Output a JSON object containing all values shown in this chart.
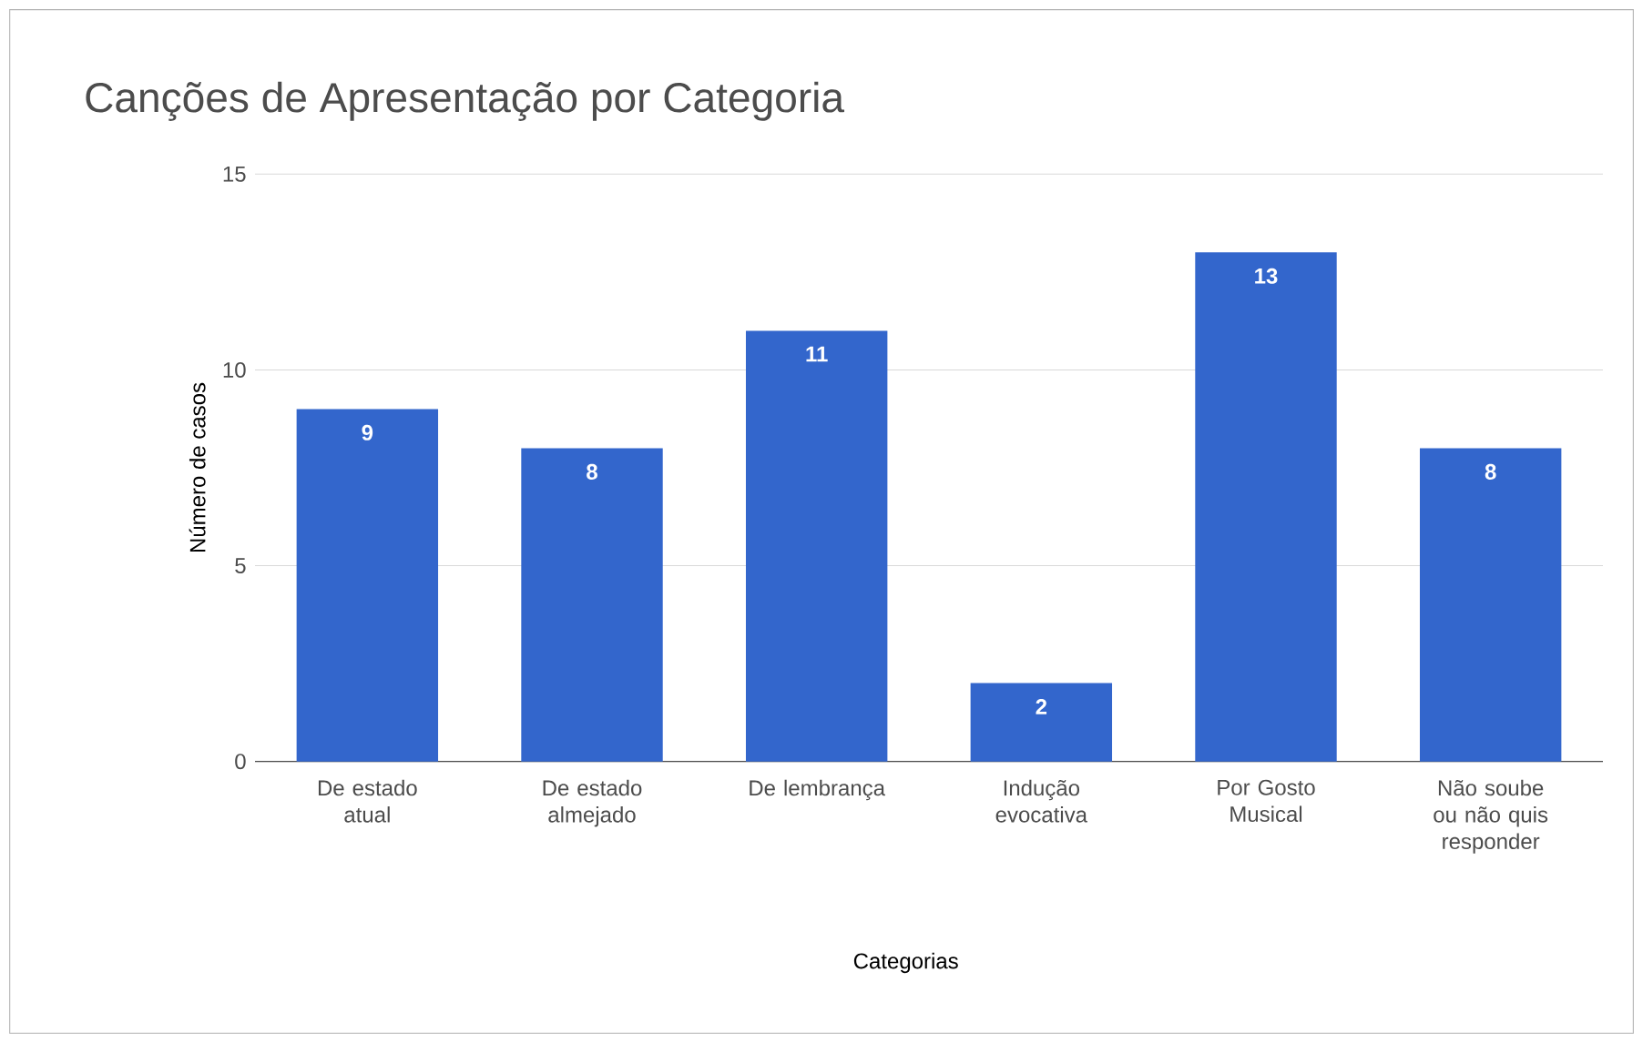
{
  "chart_data": {
    "type": "bar",
    "title": "Canções de Apresentação por Categoria",
    "xlabel": "Categorias",
    "ylabel": "Número de casos",
    "categories": [
      "De estado atual",
      "De estado almejado",
      "De lembrança",
      "Indução evocativa",
      "Por Gosto Musical",
      "Não soube ou não quis responder"
    ],
    "values": [
      9,
      8,
      11,
      2,
      13,
      8
    ],
    "color": "#3366cc",
    "ylim": [
      0,
      15
    ],
    "yticks": [
      0,
      5,
      10,
      15
    ],
    "grid": "y",
    "data_labels": true
  }
}
